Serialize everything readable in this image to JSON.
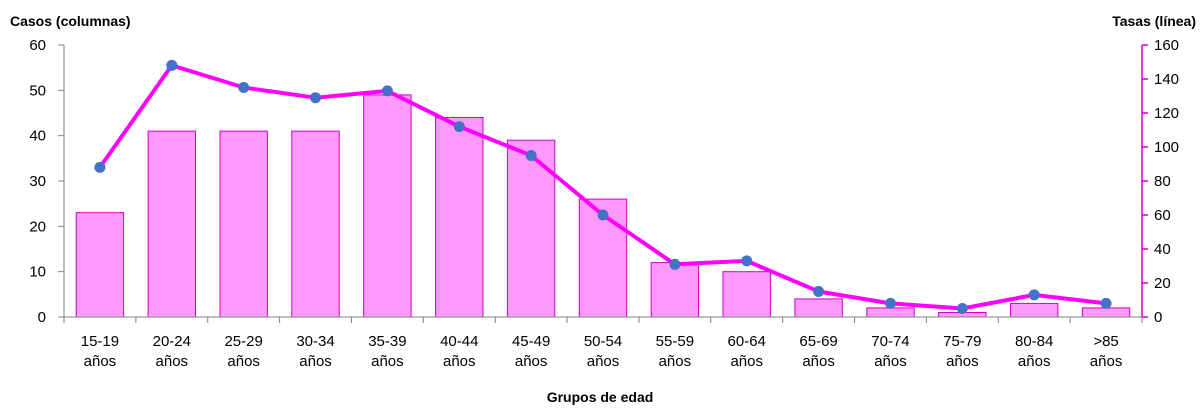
{
  "chart_data": {
    "type": "bar",
    "combo": "bar-line-dual-axis",
    "categories": [
      [
        "15-19",
        "años"
      ],
      [
        "20-24",
        "años"
      ],
      [
        "25-29",
        "años"
      ],
      [
        "30-34",
        "años"
      ],
      [
        "35-39",
        "años"
      ],
      [
        "40-44",
        "años"
      ],
      [
        "45-49",
        "años"
      ],
      [
        "50-54",
        "años"
      ],
      [
        "55-59",
        "años"
      ],
      [
        "60-64",
        "años"
      ],
      [
        "65-69",
        "años"
      ],
      [
        "70-74",
        "años"
      ],
      [
        "75-79",
        "años"
      ],
      [
        "80-84",
        "años"
      ],
      [
        ">85",
        "años"
      ]
    ],
    "series": [
      {
        "kind": "bar",
        "axis": "left",
        "values": [
          23,
          41,
          41,
          41,
          49,
          44,
          39,
          26,
          12,
          10,
          4,
          2,
          1,
          3,
          2
        ]
      },
      {
        "kind": "line",
        "axis": "right",
        "values": [
          88,
          148,
          135,
          129,
          133,
          112,
          95,
          60,
          31,
          33,
          15,
          8,
          5,
          13,
          8
        ]
      }
    ],
    "ylabel_left": "Casos (columnas)",
    "ylabel_right": "Tasas (línea)",
    "xlabel": "Grupos de edad",
    "ylim_left": [
      0,
      60
    ],
    "yticks_left": [
      0,
      10,
      20,
      30,
      40,
      50,
      60
    ],
    "ylim_right": [
      0,
      160
    ],
    "yticks_right": [
      0,
      20,
      40,
      60,
      80,
      100,
      120,
      140,
      160
    ],
    "grid": false,
    "colors": {
      "bar_fill": "#ff99ff",
      "bar_stroke": "#cc00cc",
      "line": "#ff00ff",
      "marker": "#4472c4",
      "axis_right": "#cc00cc",
      "axis_left": "#808080"
    }
  }
}
